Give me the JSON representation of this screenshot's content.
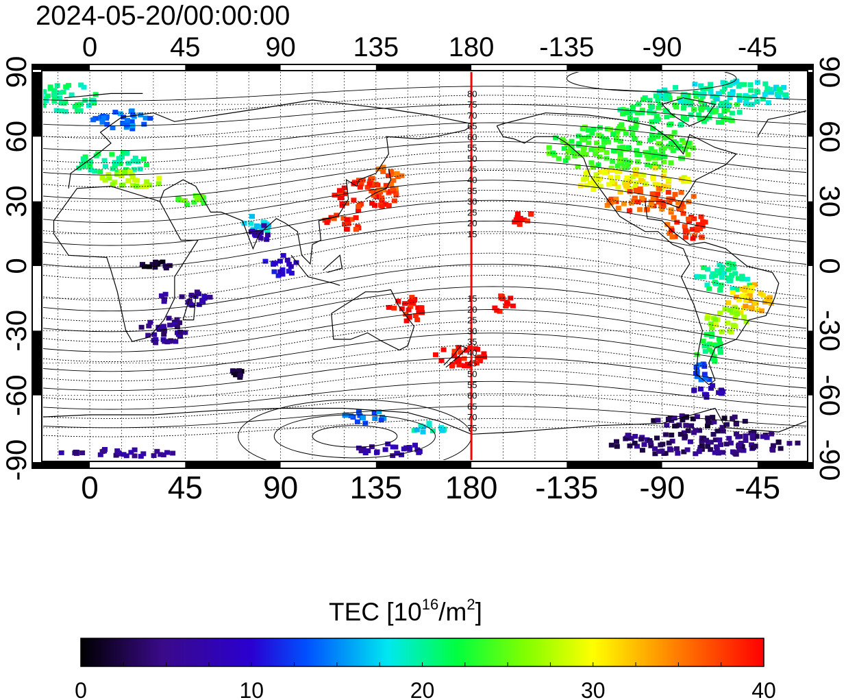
{
  "title": "2024-05-20/00:00:00",
  "map": {
    "lon_range": [
      -22,
      338
    ],
    "lat_range": [
      -90,
      90
    ],
    "lon_ticks": [
      {
        "lon": 0,
        "label": "0"
      },
      {
        "lon": 45,
        "label": "45"
      },
      {
        "lon": 90,
        "label": "90"
      },
      {
        "lon": 135,
        "label": "135"
      },
      {
        "lon": 180,
        "label": "180"
      },
      {
        "lon": 225,
        "label": "-135"
      },
      {
        "lon": 270,
        "label": "-90"
      },
      {
        "lon": 315,
        "label": "-45"
      }
    ],
    "lat_ticks": [
      {
        "lat": 90,
        "label": "90"
      },
      {
        "lat": 60,
        "label": "60"
      },
      {
        "lat": 30,
        "label": "30"
      },
      {
        "lat": 0,
        "label": "0"
      },
      {
        "lat": -30,
        "label": "-30"
      },
      {
        "lat": -60,
        "label": "-60"
      },
      {
        "lat": -90,
        "label": "-90"
      }
    ],
    "grid": "dotted",
    "meridian_line": {
      "lon": 180,
      "color": "#ff0000"
    },
    "meridian_labels_north": [
      {
        "lat": 80,
        "label": "80"
      },
      {
        "lat": 75,
        "label": "75"
      },
      {
        "lat": 70,
        "label": "70"
      },
      {
        "lat": 65,
        "label": "65"
      },
      {
        "lat": 60,
        "label": "60"
      },
      {
        "lat": 55,
        "label": "55"
      },
      {
        "lat": 50,
        "label": "50"
      },
      {
        "lat": 45,
        "label": "45"
      },
      {
        "lat": 40,
        "label": "40"
      },
      {
        "lat": 35,
        "label": "35"
      },
      {
        "lat": 30,
        "label": "30"
      },
      {
        "lat": 25,
        "label": "25"
      },
      {
        "lat": 20,
        "label": "20"
      },
      {
        "lat": 15,
        "label": "15"
      }
    ],
    "meridian_labels_south": [
      {
        "lat": -15,
        "label": "15"
      },
      {
        "lat": -20,
        "label": "20"
      },
      {
        "lat": -25,
        "label": "25"
      },
      {
        "lat": -30,
        "label": "30"
      },
      {
        "lat": -35,
        "label": "35"
      },
      {
        "lat": -40,
        "label": "40"
      },
      {
        "lat": -45,
        "label": "45"
      },
      {
        "lat": -50,
        "label": "50"
      },
      {
        "lat": -55,
        "label": "55"
      },
      {
        "lat": -60,
        "label": "60"
      },
      {
        "lat": -65,
        "label": "65"
      },
      {
        "lat": -70,
        "label": "70"
      },
      {
        "lat": -75,
        "label": "75"
      }
    ],
    "tec_regions": [
      {
        "lon": 250,
        "lat": 55,
        "rlon": 35,
        "rlat": 11,
        "tec": 24
      },
      {
        "lon": 280,
        "lat": 72,
        "rlon": 30,
        "rlat": 8,
        "tec": 22
      },
      {
        "lon": 300,
        "lat": 80,
        "rlon": 32,
        "rlat": 6,
        "tec": 19
      },
      {
        "lon": 255,
        "lat": 40,
        "rlon": 28,
        "rlat": 6,
        "tec": 31
      },
      {
        "lon": 265,
        "lat": 30,
        "rlon": 22,
        "rlat": 6,
        "tec": 37
      },
      {
        "lon": 282,
        "lat": 18,
        "rlon": 10,
        "rlat": 7,
        "tec": 38
      },
      {
        "lon": 300,
        "lat": -5,
        "rlon": 14,
        "rlat": 7,
        "tec": 20
      },
      {
        "lon": 310,
        "lat": -15,
        "rlon": 13,
        "rlat": 7,
        "tec": 33
      },
      {
        "lon": 300,
        "lat": -25,
        "rlon": 10,
        "rlat": 6,
        "tec": 28
      },
      {
        "lon": 292,
        "lat": -38,
        "rlon": 6,
        "rlat": 8,
        "tec": 22
      },
      {
        "lon": 290,
        "lat": -50,
        "rlon": 5,
        "rlat": 5,
        "tec": 13
      },
      {
        "lon": 292,
        "lat": -58,
        "rlon": 7,
        "rlat": 3,
        "tec": 7
      },
      {
        "lon": 130,
        "lat": 33,
        "rlon": 15,
        "rlat": 8,
        "tec": 39
      },
      {
        "lon": 140,
        "lat": 40,
        "rlon": 8,
        "rlat": 6,
        "tec": 37
      },
      {
        "lon": 120,
        "lat": 20,
        "rlon": 10,
        "rlat": 4,
        "tec": 39
      },
      {
        "lon": 150,
        "lat": -20,
        "rlon": 10,
        "rlat": 6,
        "tec": 40
      },
      {
        "lon": 175,
        "lat": -42,
        "rlon": 12,
        "rlat": 5,
        "tec": 40
      },
      {
        "lon": 195,
        "lat": -17,
        "rlon": 6,
        "rlat": 5,
        "tec": 40
      },
      {
        "lon": 205,
        "lat": 22,
        "rlon": 6,
        "rlat": 3,
        "tec": 40
      },
      {
        "lon": -10,
        "lat": 78,
        "rlon": 14,
        "rlat": 7,
        "tec": 20
      },
      {
        "lon": 15,
        "lat": 68,
        "rlon": 14,
        "rlat": 5,
        "tec": 14
      },
      {
        "lon": 10,
        "lat": 48,
        "rlon": 18,
        "rlat": 5,
        "tec": 21
      },
      {
        "lon": 20,
        "lat": 40,
        "rlon": 15,
        "rlat": 4,
        "tec": 28
      },
      {
        "lon": 50,
        "lat": 30,
        "rlon": 10,
        "rlat": 3,
        "tec": 25
      },
      {
        "lon": 80,
        "lat": 20,
        "rlon": 8,
        "rlat": 4,
        "tec": 17
      },
      {
        "lon": 35,
        "lat": -30,
        "rlon": 12,
        "rlat": 6,
        "tec": 5
      },
      {
        "lon": 30,
        "lat": 0,
        "rlon": 8,
        "rlat": 3,
        "tec": 1
      },
      {
        "lon": 45,
        "lat": -15,
        "rlon": 12,
        "rlat": 4,
        "tec": 6
      },
      {
        "lon": 70,
        "lat": -50,
        "rlon": 5,
        "rlat": 2,
        "tec": 2
      },
      {
        "lon": 130,
        "lat": -70,
        "rlon": 12,
        "rlat": 3,
        "tec": 14
      },
      {
        "lon": 160,
        "lat": -75,
        "rlon": 8,
        "rlat": 3,
        "tec": 18
      },
      {
        "lon": 10,
        "lat": -87,
        "rlon": 30,
        "rlat": 2,
        "tec": 5
      },
      {
        "lon": 140,
        "lat": -85,
        "rlon": 18,
        "rlat": 3,
        "tec": 6
      },
      {
        "lon": 290,
        "lat": -82,
        "rlon": 45,
        "rlat": 6,
        "tec": 4
      },
      {
        "lon": 290,
        "lat": -72,
        "rlon": 25,
        "rlat": 3,
        "tec": 3
      },
      {
        "lon": 90,
        "lat": 0,
        "rlon": 8,
        "rlat": 5,
        "tec": 9
      },
      {
        "lon": 80,
        "lat": 15,
        "rlon": 5,
        "rlat": 5,
        "tec": 6
      }
    ]
  },
  "colorbar": {
    "label_main": "TEC  [10",
    "label_sup1": "16",
    "label_mid": "/m",
    "label_sup2": "2",
    "label_end": "]",
    "min": 0,
    "max": 40,
    "ticks": [
      {
        "value": 0,
        "label": "0"
      },
      {
        "value": 10,
        "label": "10"
      },
      {
        "value": 20,
        "label": "20"
      },
      {
        "value": 30,
        "label": "30"
      },
      {
        "value": 40,
        "label": "40"
      }
    ],
    "colors": [
      "#000000",
      "#3a0a8a",
      "#2a00d0",
      "#0050ff",
      "#00e8f0",
      "#00ff40",
      "#80ff00",
      "#ffff00",
      "#ff8000",
      "#ff0000"
    ]
  }
}
